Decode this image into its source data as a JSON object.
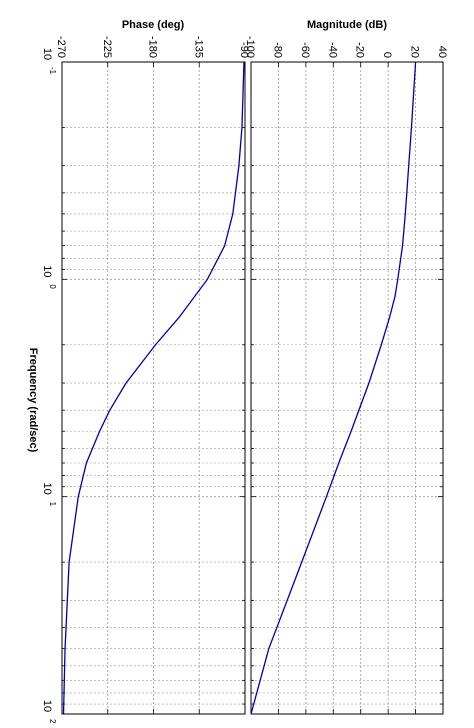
{
  "chart_data": [
    {
      "type": "line",
      "title": "Magnitude (dB)",
      "xlabel": "Frequency  (rad/sec)",
      "ylabel": "",
      "xscale": "log",
      "xlim": [
        0.1,
        100
      ],
      "ylim": [
        -100,
        40
      ],
      "yticks": [
        -100,
        -80,
        -60,
        -40,
        -20,
        0,
        20,
        40
      ],
      "grid": true,
      "rotated": true,
      "color": "#0000aa",
      "series": [
        {
          "x": [
            0.1,
            0.2,
            0.3,
            0.5,
            0.7,
            1.0,
            1.2,
            1.5,
            2.0,
            3.0,
            5.0,
            7.0,
            10.0,
            20.0,
            50.0,
            100.0
          ],
          "values": [
            20.0,
            17.0,
            15.0,
            12.5,
            10.5,
            7.0,
            5.0,
            1.0,
            -5.0,
            -14.0,
            -27.0,
            -36.0,
            -45.0,
            -63.0,
            -87.0,
            -105.0
          ]
        }
      ]
    },
    {
      "type": "line",
      "title": "Phase (deg)",
      "xlabel": "Frequency  (rad/sec)",
      "ylabel": "",
      "xscale": "log",
      "xlim": [
        0.1,
        100
      ],
      "ylim": [
        -270,
        -90
      ],
      "yticks": [
        -270,
        -225,
        -180,
        -135,
        -90
      ],
      "grid": true,
      "rotated": true,
      "color": "#0000aa",
      "series": [
        {
          "x": [
            0.1,
            0.2,
            0.3,
            0.5,
            0.7,
            1.0,
            1.5,
            2.0,
            3.0,
            4.0,
            5.0,
            7.0,
            10.0,
            20.0,
            50.0,
            100.0
          ],
          "values": [
            -91.0,
            -93.0,
            -96.0,
            -102.0,
            -110.0,
            -127.0,
            -155.0,
            -178.0,
            -207.0,
            -223.0,
            -233.0,
            -246.0,
            -254.0,
            -263.0,
            -267.0,
            -268.5
          ]
        }
      ]
    }
  ],
  "axis_labels": {
    "decades": [
      {
        "base": "10",
        "exp": "-1"
      },
      {
        "base": "10",
        "exp": "0"
      },
      {
        "base": "10",
        "exp": "1"
      },
      {
        "base": "10",
        "exp": "2"
      }
    ]
  }
}
